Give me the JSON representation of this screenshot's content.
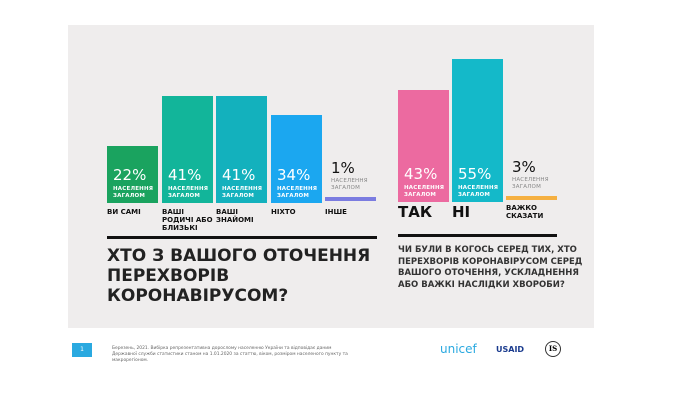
{
  "chart_data": [
    {
      "type": "bar",
      "unit": "%",
      "value_note": "НАСЕЛЕННЯ ЗАГАЛОМ",
      "categories": [
        "ВИ САМІ",
        "ВАШІ РОДИЧІ АБО БЛИЗЬКІ",
        "ВАШІ ЗНАЙОМІ",
        "НІХТО",
        "ІНШЕ"
      ],
      "values": [
        22,
        41,
        41,
        34,
        1
      ],
      "labels": [
        "22%",
        "41%",
        "41%",
        "34%",
        "1%"
      ],
      "colors": [
        "#1aa35f",
        "#12b59a",
        "#13b1bd",
        "#1ba7f0",
        "#7b7ce0"
      ],
      "title": "ХТО З ВАШОГО ОТОЧЕННЯ ПЕРЕХВОРІВ КОРОНАВІРУСОМ?"
    },
    {
      "type": "bar",
      "unit": "%",
      "value_note": "НАСЕЛЕННЯ ЗАГАЛОМ",
      "categories": [
        "ТАК",
        "НІ",
        "ВАЖКО СКАЗАТИ"
      ],
      "values": [
        43,
        55,
        3
      ],
      "labels": [
        "43%",
        "55%",
        "3%"
      ],
      "colors": [
        "#ec6aa0",
        "#14b9c9",
        "#f5b041"
      ],
      "title": "ЧИ БУЛИ В КОГОСЬ СЕРЕД ТИХ, ХТО ПЕРЕХВОРІВ КОРОНАВІРУСОМ СЕРЕД ВАШОГО ОТОЧЕННЯ, УСКЛАДНЕННЯ АБО ВАЖКІ НАСЛІДКИ ХВОРОБИ?"
    }
  ],
  "footer": {
    "page": "1",
    "note": "Березень, 2021. Вибірка репрезентативна дорослому населенню України та відповідає даним Державної служби статистики станом на 1.01.2020 за статтю, віком, розміром населеного пункту та макрорегіоном.",
    "logos": [
      "unicef",
      "USAID",
      "IS"
    ]
  }
}
